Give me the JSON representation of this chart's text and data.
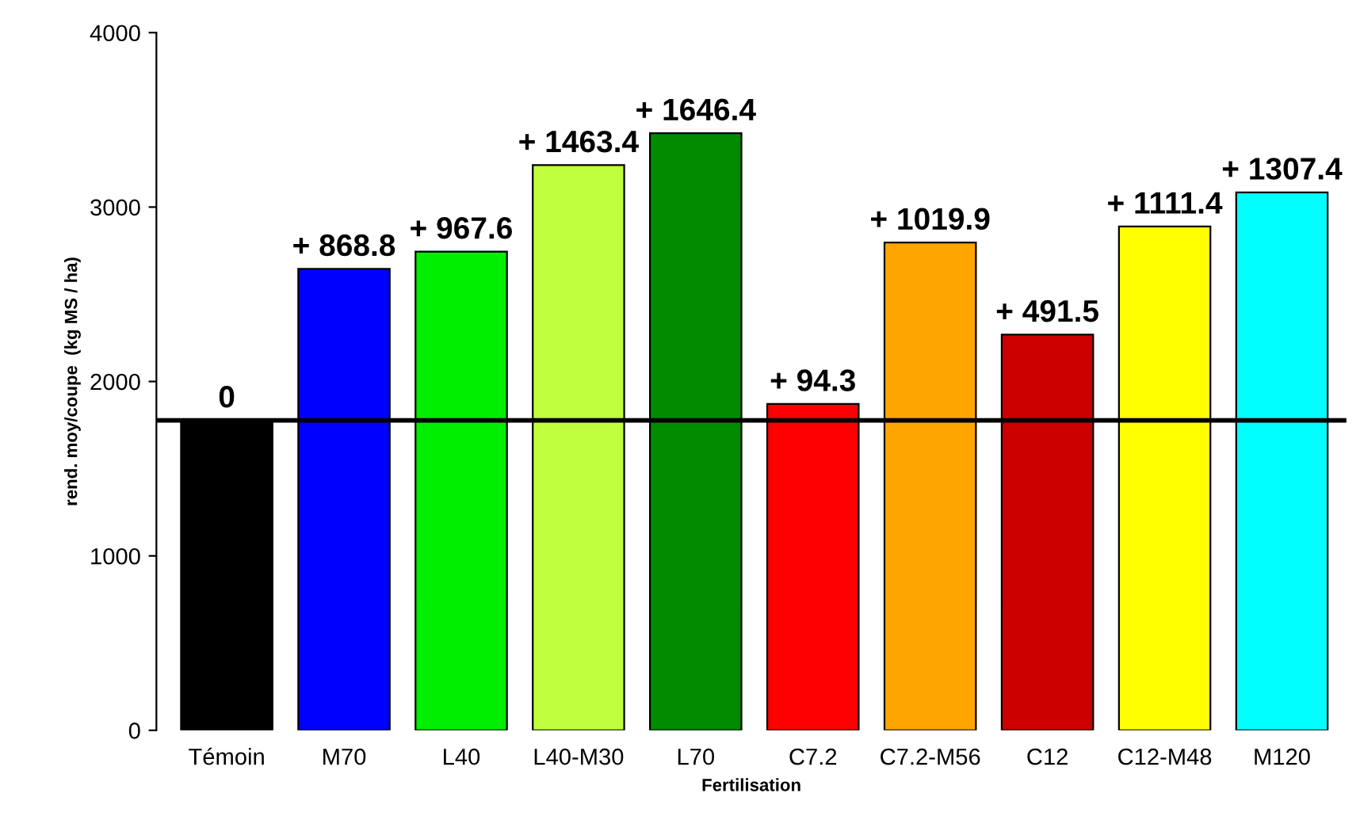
{
  "chart_data": {
    "type": "bar",
    "stacked": true,
    "xlabel": "Fertilisation",
    "ylabel": "rend. moy/coupe  (kg MS / ha)",
    "categories": [
      "Témoin",
      "M70",
      "L40",
      "L40-M30",
      "L70",
      "C7.2",
      "C7.2-M56",
      "C12",
      "C12-M48",
      "M120"
    ],
    "series": [
      {
        "colors": [
          "#000000",
          "#0000ff",
          "#00ee00",
          "#c0ff3e",
          "#008b00",
          "#ff0000",
          "#ffa500",
          "#cd0000",
          "#ffff00",
          "#00ffff"
        ],
        "values": [
          1777,
          1777,
          1777,
          1777,
          1777,
          1777,
          1777,
          1777,
          1777,
          1777
        ]
      },
      {
        "colors": [
          "#000000",
          "#0000ff",
          "#00ee00",
          "#c0ff3e",
          "#008b00",
          "#ff0000",
          "#ffa500",
          "#cd0000",
          "#ffff00",
          "#00ffff"
        ],
        "values": [
          0,
          868.8,
          967.6,
          1463.4,
          1646.4,
          94.3,
          1019.9,
          491.5,
          1111.4,
          1307.4
        ],
        "value_labels": [
          "0",
          "+ 868.8",
          "+ 967.6",
          "+ 1463.4",
          "+ 1646.4",
          "+ 94.3",
          "+ 1019.9",
          "+ 491.5",
          "+ 1111.4",
          "+ 1307.4"
        ]
      }
    ],
    "ylim": [
      0,
      4000
    ],
    "yticks": [
      0,
      1000,
      2000,
      3000,
      4000
    ],
    "ref_lines": [
      {
        "axis": "y",
        "value": 1777,
        "color": "#000000"
      }
    ],
    "grid": false,
    "legend": false
  }
}
